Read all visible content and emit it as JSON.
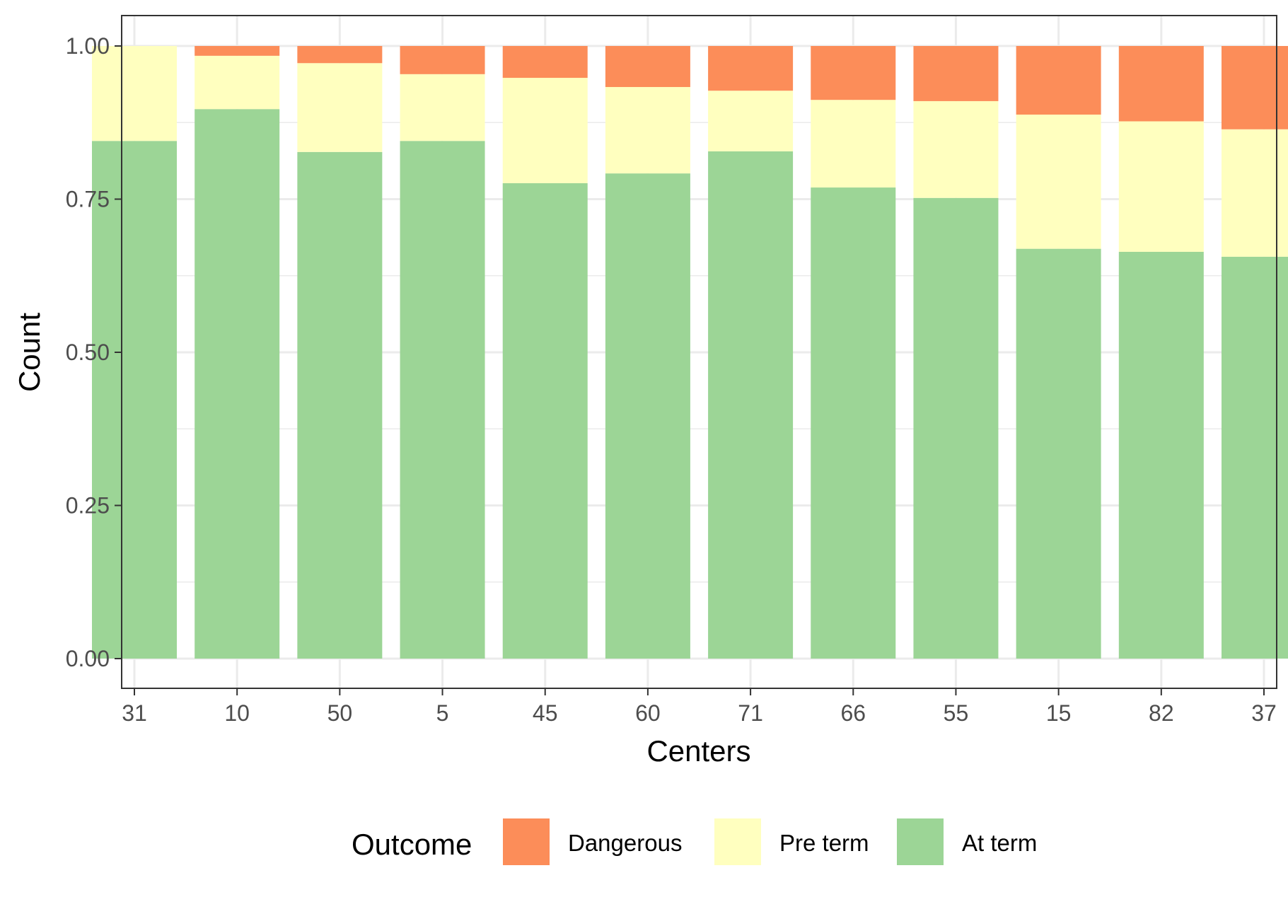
{
  "chart_data": {
    "type": "bar",
    "stacked": true,
    "xlabel": "Centers",
    "ylabel": "Count",
    "ylim": [
      0,
      1.05
    ],
    "yticks": [
      "0.00",
      "0.25",
      "0.50",
      "0.75",
      "1.00"
    ],
    "ytick_values": [
      0,
      0.25,
      0.5,
      0.75,
      1.0
    ],
    "grid": true,
    "legend_position": "bottom",
    "legend_title": "Outcome",
    "categories": [
      "31",
      "10",
      "50",
      "5",
      "45",
      "60",
      "71",
      "66",
      "55",
      "15",
      "82",
      "37"
    ],
    "series": [
      {
        "name": "At term",
        "color": "#9cd596",
        "values": [
          0.845,
          0.897,
          0.827,
          0.845,
          0.776,
          0.792,
          0.828,
          0.769,
          0.752,
          0.669,
          0.664,
          0.656
        ]
      },
      {
        "name": "Pre term",
        "color": "#ffffbf",
        "values": [
          0.155,
          0.087,
          0.145,
          0.109,
          0.172,
          0.141,
          0.099,
          0.143,
          0.158,
          0.219,
          0.213,
          0.208
        ]
      },
      {
        "name": "Dangerous",
        "color": "#fc8d59",
        "values": [
          0.0,
          0.016,
          0.028,
          0.046,
          0.052,
          0.067,
          0.073,
          0.088,
          0.09,
          0.112,
          0.123,
          0.136
        ]
      }
    ],
    "legend_order": [
      "Dangerous",
      "Pre term",
      "At term"
    ]
  }
}
